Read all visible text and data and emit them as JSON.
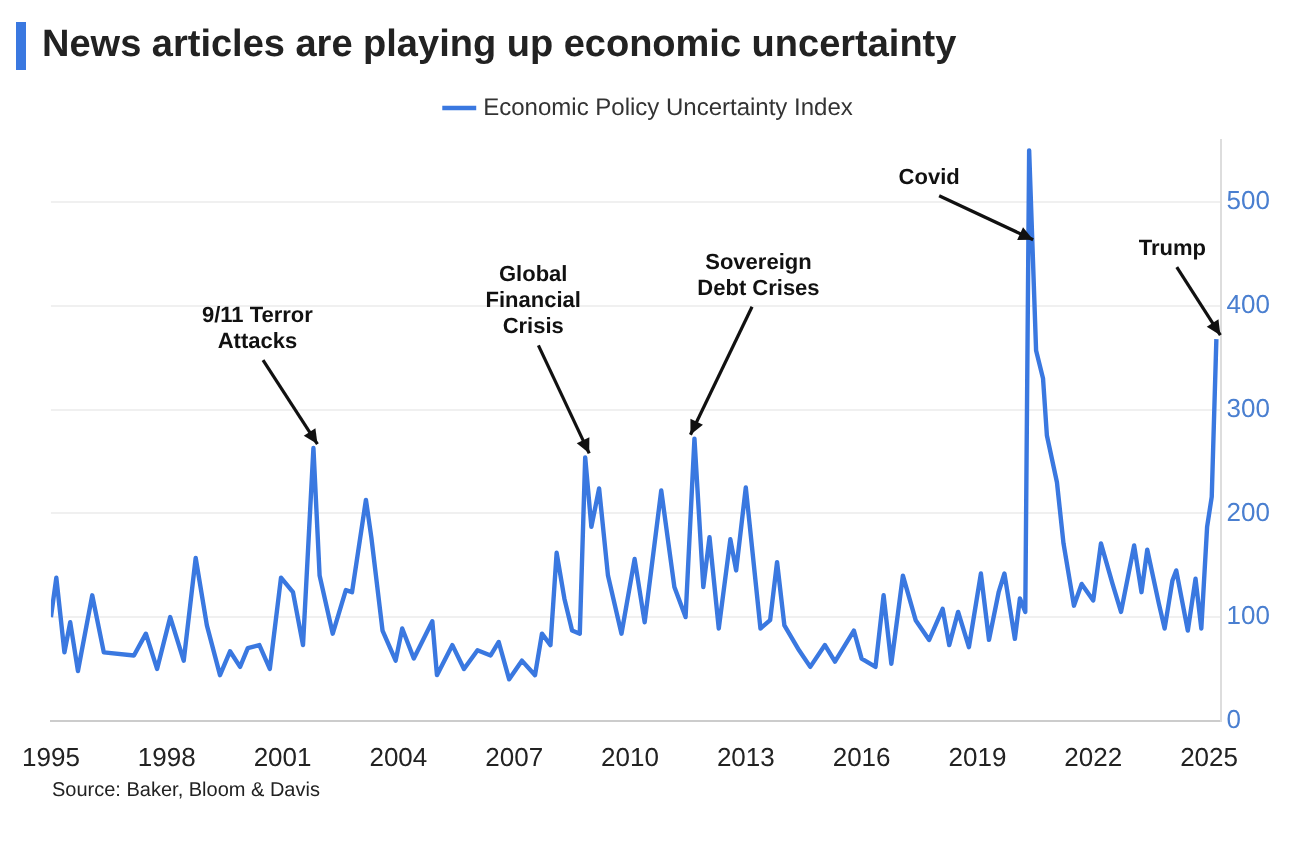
{
  "chart_data": {
    "type": "line",
    "title": "News articles are playing up economic uncertainty",
    "series": [
      {
        "name": "Economic Policy Uncertainty Index",
        "color": "#3a78e0",
        "x": [
          1995.0,
          1995.14,
          1995.35,
          1995.5,
          1995.7,
          1996.07,
          1996.37,
          1997.15,
          1997.46,
          1997.75,
          1998.09,
          1998.44,
          1998.75,
          1999.04,
          1999.38,
          1999.64,
          1999.9,
          2000.1,
          2000.4,
          2000.67,
          2000.96,
          2001.27,
          2001.53,
          2001.8,
          2001.96,
          2002.3,
          2002.64,
          2002.8,
          2003.16,
          2003.3,
          2003.59,
          2003.93,
          2004.1,
          2004.4,
          2004.88,
          2005.0,
          2005.4,
          2005.7,
          2006.05,
          2006.39,
          2006.6,
          2006.87,
          2007.2,
          2007.54,
          2007.72,
          2007.94,
          2008.1,
          2008.3,
          2008.5,
          2008.7,
          2008.84,
          2009.0,
          2009.2,
          2009.43,
          2009.78,
          2010.12,
          2010.38,
          2010.81,
          2011.15,
          2011.44,
          2011.67,
          2011.9,
          2012.06,
          2012.3,
          2012.6,
          2012.75,
          2013.0,
          2013.38,
          2013.63,
          2013.81,
          2014.0,
          2014.38,
          2014.67,
          2015.05,
          2015.31,
          2015.8,
          2016.0,
          2016.36,
          2016.57,
          2016.77,
          2017.07,
          2017.4,
          2017.75,
          2018.1,
          2018.27,
          2018.5,
          2018.78,
          2019.09,
          2019.3,
          2019.55,
          2019.7,
          2019.97,
          2020.1,
          2020.24,
          2020.34,
          2020.52,
          2020.7,
          2020.8,
          2021.06,
          2021.23,
          2021.5,
          2021.7,
          2022.0,
          2022.2,
          2022.5,
          2022.72,
          2023.06,
          2023.25,
          2023.4,
          2023.7,
          2023.85,
          2024.05,
          2024.15,
          2024.45,
          2024.65,
          2024.8,
          2024.95,
          2025.07,
          2025.19
        ],
        "values": [
          100,
          138,
          66,
          95,
          48,
          121,
          66,
          63,
          84,
          50,
          100,
          58,
          157,
          92,
          44,
          67,
          52,
          70,
          73,
          50,
          138,
          124,
          73,
          263,
          140,
          84,
          126,
          124,
          213,
          177,
          87,
          58,
          89,
          60,
          96,
          44,
          73,
          50,
          68,
          63,
          76,
          40,
          58,
          44,
          84,
          73,
          162,
          118,
          87,
          84,
          254,
          187,
          224,
          140,
          84,
          156,
          95,
          222,
          129,
          100,
          272,
          129,
          177,
          89,
          175,
          145,
          225,
          89,
          97,
          153,
          92,
          68,
          52,
          73,
          57,
          87,
          60,
          52,
          121,
          55,
          140,
          97,
          78,
          108,
          73,
          105,
          71,
          142,
          78,
          124,
          142,
          79,
          118,
          105,
          550,
          357,
          330,
          275,
          230,
          171,
          111,
          132,
          116,
          171,
          132,
          105,
          169,
          124,
          165,
          113,
          89,
          135,
          145,
          87,
          137,
          89,
          187,
          216,
          368
        ]
      }
    ],
    "xlim": [
      1995,
      2025.3
    ],
    "xticks": [
      1995,
      1998,
      2001,
      2004,
      2007,
      2010,
      2013,
      2016,
      2019,
      2022,
      2025
    ],
    "ylim": [
      0,
      560
    ],
    "yticks": [
      0,
      100,
      200,
      300,
      400,
      500
    ],
    "grid": "y",
    "legend": "top",
    "marker": "none",
    "line_style": "solid",
    "annotations": [
      {
        "text": "9/11 Terror Attacks",
        "x": 2001.8,
        "y": 263
      },
      {
        "text": "Global Financial Crisis",
        "x": 2008.84,
        "y": 254
      },
      {
        "text": "Sovereign Debt Crises",
        "x": 2011.67,
        "y": 272
      },
      {
        "text": "Covid",
        "x": 2020.34,
        "y": 460
      },
      {
        "text": "Trump",
        "x": 2025.19,
        "y": 368
      },
      "Source: Baker, Bloom & Davis"
    ]
  }
}
